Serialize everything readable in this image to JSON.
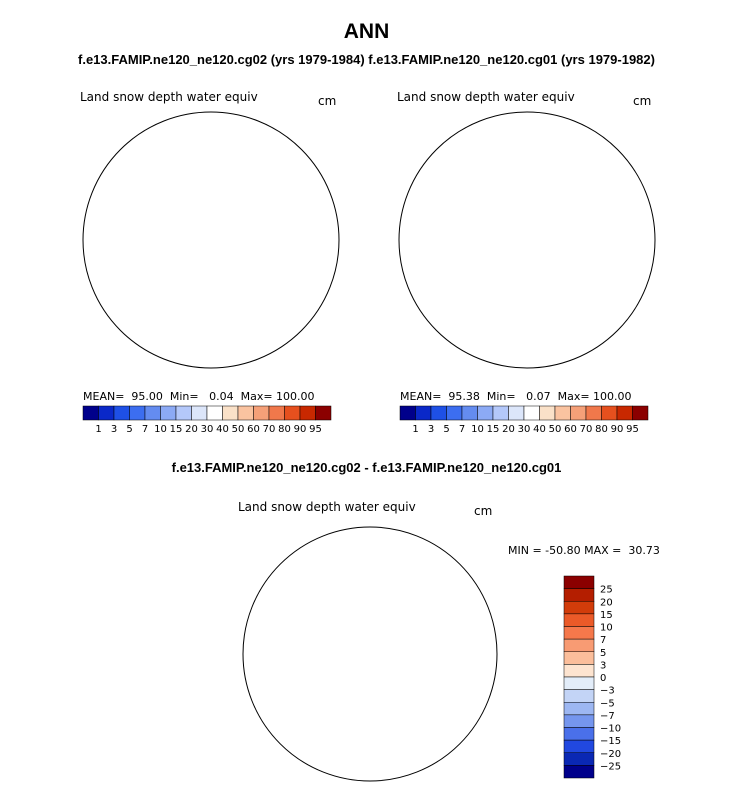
{
  "page": {
    "title": "ANN",
    "subtitle": "f.e13.FAMIP.ne120_ne120.cg02 (yrs 1979-1984) f.e13.FAMIP.ne120_ne120.cg01 (yrs 1979-1982)",
    "diff_title": "f.e13.FAMIP.ne120_ne120.cg02 - f.e13.FAMIP.ne120_ne120.cg01"
  },
  "panels": [
    {
      "variable": "Land snow depth water equiv",
      "units": "cm",
      "stats": "MEAN=  95.00  Min=   0.04  Max= 100.00"
    },
    {
      "variable": "Land snow depth water equiv",
      "units": "cm",
      "stats": "MEAN=  95.38  Min=   0.07  Max= 100.00"
    }
  ],
  "diff_panel": {
    "variable": "Land snow depth water equiv",
    "units": "cm",
    "stats": "MIN = -50.80 MAX =  30.73"
  },
  "colorbar_levels": [
    "1",
    "3",
    "5",
    "7",
    "10",
    "15",
    "20",
    "30",
    "40",
    "50",
    "60",
    "70",
    "80",
    "90",
    "95"
  ],
  "colorbar_colors": [
    "#00008b",
    "#0a28c8",
    "#1e50e6",
    "#3c6ef0",
    "#648cf0",
    "#8caaf5",
    "#b4c8fa",
    "#dce6fa",
    "#ffffff",
    "#fae1c8",
    "#fac3a0",
    "#f5a078",
    "#f0784b",
    "#e6501e",
    "#c82800",
    "#8b0000"
  ],
  "diff_levels": [
    "25",
    "20",
    "15",
    "10",
    "7",
    "5",
    "3",
    "0",
    "−3",
    "−5",
    "−7",
    "−10",
    "−15",
    "−20",
    "−25"
  ],
  "diff_colors": [
    "#8b0000",
    "#b41e00",
    "#d23c0a",
    "#eb5a28",
    "#f5784b",
    "#f89b73",
    "#fbbe9b",
    "#fde4d0",
    "#e3edf9",
    "#c3d4f6",
    "#9db7f2",
    "#7596ee",
    "#4a70ea",
    "#2148e0",
    "#0a28b4",
    "#00008b"
  ],
  "map_colors": {
    "snow_high": "#8b0000",
    "diff_positive": "#fde4d0",
    "diff_negative": "#dce8f8",
    "diff_strong_negative": "#0a28c8"
  }
}
